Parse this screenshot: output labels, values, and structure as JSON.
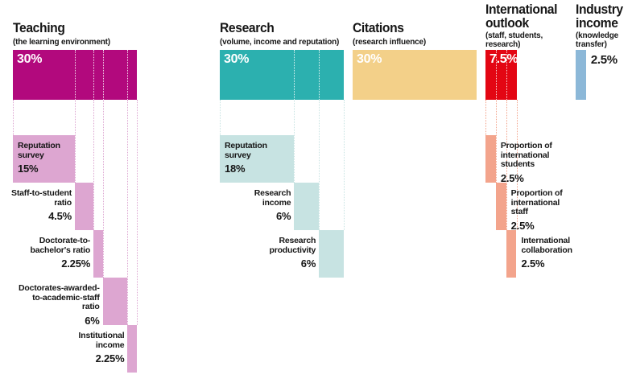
{
  "chart_data": {
    "type": "bar",
    "description": "University rankings methodology weighting breakdown: five pillars with percentage weights and sub-indicator weights",
    "unit": "percent",
    "total": 100,
    "columns": [
      {
        "id": "teaching",
        "title_lines": [
          "Teaching"
        ],
        "subtitle_lines": [
          "(the learning environment)"
        ],
        "weight": 30,
        "weight_label": "30%",
        "bar_color": "#b2097d",
        "sub_color": "#dda6d1",
        "label_side": "left",
        "subs": [
          {
            "label_lines": [
              "Reputation",
              "survey"
            ],
            "value_label": "15%",
            "weight": 15,
            "label_inside": true
          },
          {
            "label_lines": [
              "Staff-to-student",
              "ratio"
            ],
            "value_label": "4.5%",
            "weight": 4.5
          },
          {
            "label_lines": [
              "Doctorate-to-",
              "bachelor's ratio"
            ],
            "value_label": "2.25%",
            "weight": 2.25
          },
          {
            "label_lines": [
              "Doctorates-awarded-",
              "to-academic-staff",
              "ratio"
            ],
            "value_label": "6%",
            "weight": 6
          },
          {
            "label_lines": [
              "Institutional",
              "income"
            ],
            "value_label": "2.25%",
            "weight": 2.25
          }
        ]
      },
      {
        "id": "research",
        "title_lines": [
          "Research"
        ],
        "subtitle_lines": [
          "(volume, income and reputation)"
        ],
        "weight": 30,
        "weight_label": "30%",
        "bar_color": "#2cb0af",
        "sub_color": "#c7e3e2",
        "label_side": "left",
        "subs": [
          {
            "label_lines": [
              "Reputation",
              "survey"
            ],
            "value_label": "18%",
            "weight": 18,
            "label_inside": true
          },
          {
            "label_lines": [
              "Research",
              "income"
            ],
            "value_label": "6%",
            "weight": 6
          },
          {
            "label_lines": [
              "Research",
              "productivity"
            ],
            "value_label": "6%",
            "weight": 6
          }
        ]
      },
      {
        "id": "citations",
        "title_lines": [
          "Citations"
        ],
        "subtitle_lines": [
          "(research influence)"
        ],
        "weight": 30,
        "weight_label": "30%",
        "bar_color": "#f3d089",
        "sub_color": "#f3d089",
        "label_side": "left",
        "subs": []
      },
      {
        "id": "international-outlook",
        "title_lines": [
          "International",
          "outlook"
        ],
        "subtitle_lines": [
          "(staff, students,",
          "research)"
        ],
        "weight": 7.5,
        "weight_label": "7.5%",
        "bar_color": "#e30613",
        "sub_color": "#f3a48c",
        "label_side": "right",
        "subs": [
          {
            "label_lines": [
              "Proportion of",
              "international",
              "students"
            ],
            "value_label": "2.5%",
            "weight": 2.5
          },
          {
            "label_lines": [
              "Proportion of",
              "international",
              "staff"
            ],
            "value_label": "2.5%",
            "weight": 2.5
          },
          {
            "label_lines": [
              "International",
              "collaboration"
            ],
            "value_label": "2.5%",
            "weight": 2.5
          }
        ]
      },
      {
        "id": "industry-income",
        "title_lines": [
          "Industry",
          "income"
        ],
        "subtitle_lines": [
          "(knowledge",
          "transfer)"
        ],
        "weight": 2.5,
        "weight_label": "2.5%",
        "weight_label_outside": true,
        "bar_color": "#8cb8d8",
        "sub_color": "#8cb8d8",
        "label_side": "right",
        "subs": []
      }
    ]
  }
}
